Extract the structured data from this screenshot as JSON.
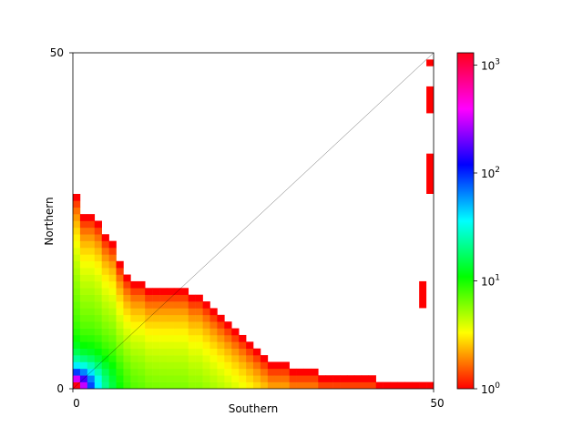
{
  "chart_data": {
    "type": "heatmap",
    "xlabel": "Southern",
    "ylabel": "Northern",
    "xlim": [
      0,
      50
    ],
    "ylim": [
      0,
      50
    ],
    "x_ticks": [
      "0",
      "50"
    ],
    "y_ticks": [
      "0",
      "50"
    ],
    "bins": 50,
    "diagonal_line": true,
    "colormap": "hsv",
    "color_scale": "log",
    "color_range": [
      1,
      1300
    ],
    "colorbar_ticks": [
      {
        "base": "10",
        "exp": "0",
        "value": 1
      },
      {
        "base": "10",
        "exp": "1",
        "value": 10
      },
      {
        "base": "10",
        "exp": "2",
        "value": 100
      },
      {
        "base": "10",
        "exp": "3",
        "value": 1000
      }
    ],
    "column_heights": [
      29,
      26,
      26,
      25,
      23,
      22,
      19,
      17,
      16,
      16,
      15,
      15,
      15,
      15,
      15,
      15,
      14,
      14,
      13,
      12,
      11,
      10,
      9,
      8,
      7,
      6,
      5,
      4,
      4,
      4,
      3,
      3,
      3,
      3,
      2,
      2,
      2,
      2,
      2,
      2,
      2,
      2,
      1,
      1,
      1,
      1,
      1,
      1,
      1,
      1
    ],
    "corner_peak": 1200,
    "isolated_cells": [
      {
        "x": 48,
        "y": 12,
        "h": 4,
        "count": 1
      },
      {
        "x": 49,
        "y": 29,
        "h": 6,
        "count": 1
      },
      {
        "x": 49,
        "y": 41,
        "h": 4,
        "count": 1
      },
      {
        "x": 49,
        "y": 48,
        "h": 1,
        "count": 1
      }
    ]
  }
}
